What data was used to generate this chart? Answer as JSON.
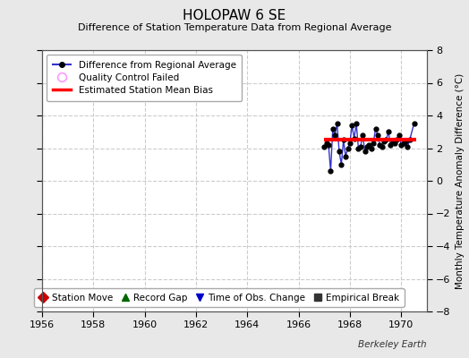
{
  "title": "HOLOPAW 6 SE",
  "subtitle": "Difference of Station Temperature Data from Regional Average",
  "ylabel": "Monthly Temperature Anomaly Difference (°C)",
  "xlim": [
    1956,
    1971
  ],
  "ylim": [
    -8,
    8
  ],
  "xticks": [
    1956,
    1958,
    1960,
    1962,
    1964,
    1966,
    1968,
    1970
  ],
  "yticks": [
    -8,
    -6,
    -4,
    -2,
    0,
    2,
    4,
    6,
    8
  ],
  "background_color": "#e8e8e8",
  "plot_bg_color": "#ffffff",
  "grid_color": "#cccccc",
  "bias_level": 2.5,
  "data_x": [
    1967.0,
    1967.083,
    1967.167,
    1967.25,
    1967.333,
    1967.417,
    1967.5,
    1967.583,
    1967.667,
    1967.75,
    1967.833,
    1967.917,
    1968.0,
    1968.083,
    1968.167,
    1968.25,
    1968.333,
    1968.417,
    1968.5,
    1968.583,
    1968.667,
    1968.75,
    1968.833,
    1968.917,
    1969.0,
    1969.083,
    1969.167,
    1969.25,
    1969.333,
    1969.417,
    1969.5,
    1969.583,
    1969.667,
    1969.75,
    1969.833,
    1969.917,
    1970.0,
    1970.083,
    1970.167,
    1970.25,
    1970.333,
    1970.5
  ],
  "data_y": [
    2.1,
    2.3,
    2.2,
    0.6,
    3.2,
    2.8,
    3.5,
    1.8,
    1.0,
    2.5,
    1.5,
    2.0,
    2.3,
    3.4,
    2.6,
    3.5,
    2.0,
    2.1,
    2.8,
    1.8,
    2.1,
    2.2,
    2.0,
    2.3,
    3.2,
    2.8,
    2.2,
    2.1,
    2.4,
    2.5,
    3.0,
    2.2,
    2.4,
    2.3,
    2.5,
    2.8,
    2.2,
    2.3,
    2.4,
    2.1,
    2.5,
    3.5
  ],
  "line_color": "#3333cc",
  "marker_color": "#000000",
  "bias_color": "#ff0000",
  "bias_x_start": 1967.0,
  "bias_x_end": 1970.6,
  "footer_text": "Berkeley Earth",
  "legend1_entries": [
    {
      "label": "Difference from Regional Average"
    },
    {
      "label": "Quality Control Failed"
    },
    {
      "label": "Estimated Station Mean Bias"
    }
  ],
  "legend2_entries": [
    {
      "label": "Station Move",
      "color": "#cc0000",
      "marker": "D"
    },
    {
      "label": "Record Gap",
      "color": "#006600",
      "marker": "^"
    },
    {
      "label": "Time of Obs. Change",
      "color": "#0000cc",
      "marker": "v"
    },
    {
      "label": "Empirical Break",
      "color": "#333333",
      "marker": "s"
    }
  ]
}
